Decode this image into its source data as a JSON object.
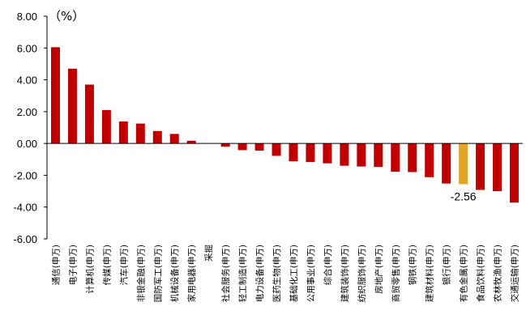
{
  "chart_data": {
    "type": "bar",
    "unit_label": "（%）",
    "ylim": [
      -6.0,
      8.0
    ],
    "yticks": [
      "8.00",
      "6.00",
      "4.00",
      "2.00",
      "0.00",
      "-2.00",
      "-4.00",
      "-6.00"
    ],
    "ytick_values": [
      8,
      6,
      4,
      2,
      0,
      -2,
      -4,
      -6
    ],
    "grid": false,
    "legend": "none",
    "colors": {
      "default": "#c00000",
      "highlight": "#e0a52a"
    },
    "categories": [
      "通信(申万)",
      "电子(申万)",
      "计算机(申万)",
      "传媒(申万)",
      "汽车(申万)",
      "非银金融(申万)",
      "国防军工(申万)",
      "机械设备(申万)",
      "家用电器(申万)",
      "采掘",
      "社会服务(申万)",
      "轻工制造(申万)",
      "电力设备(申万)",
      "医药生物(申万)",
      "基础化工(申万)",
      "公用事业(申万)",
      "综合(申万)",
      "建筑装饰(申万)",
      "纺织服饰(申万)",
      "房地产(申万)",
      "商贸零售(申万)",
      "钢铁(申万)",
      "建筑材料(申万)",
      "银行(申万)",
      "有色金属(申万)",
      "食品饮料(申万)",
      "农林牧渔(申万)",
      "交通运输(申万)"
    ],
    "values": [
      6.05,
      4.7,
      3.7,
      2.1,
      1.38,
      1.25,
      0.78,
      0.6,
      0.17,
      0.0,
      -0.2,
      -0.42,
      -0.45,
      -0.78,
      -1.12,
      -1.17,
      -1.25,
      -1.4,
      -1.45,
      -1.48,
      -1.78,
      -1.8,
      -2.12,
      -2.52,
      -2.56,
      -2.92,
      -3.0,
      -3.72
    ],
    "highlight_index": 24,
    "annotation": "-2.56"
  }
}
